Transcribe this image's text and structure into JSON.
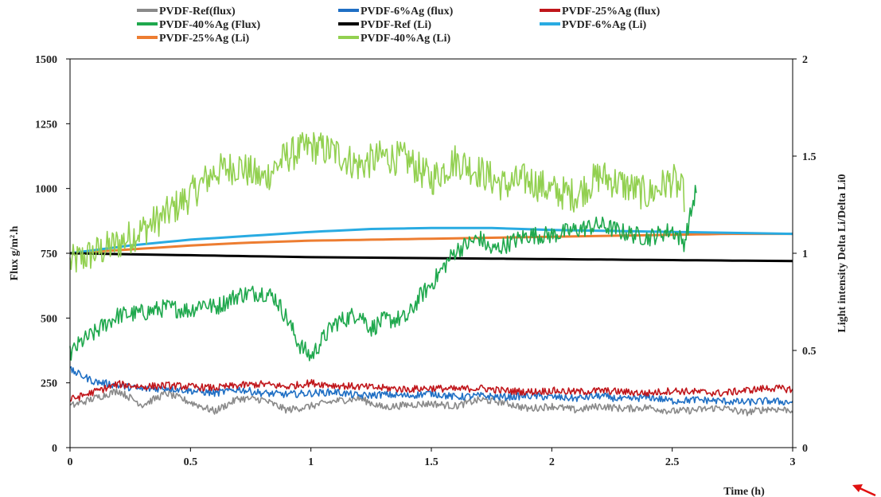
{
  "chart_data": {
    "type": "line",
    "title": "",
    "xlabel": "Time (h)",
    "ylabel": "Flux g/m².h",
    "y2label": "Light intensity Delta Li/Delta Li0",
    "xlim": [
      0,
      3
    ],
    "ylim": [
      0,
      1500
    ],
    "y2lim": [
      0,
      2
    ],
    "grid": false,
    "legend_position": "top",
    "x_ticks": [
      "0",
      "0.5",
      "1",
      "1.5",
      "2",
      "2.5",
      "3"
    ],
    "y_ticks": [
      "0",
      "250",
      "500",
      "750",
      "1000",
      "1250",
      "1500"
    ],
    "y2_ticks": [
      "0",
      "0.5",
      "1",
      "1.5",
      "2"
    ],
    "series": [
      {
        "name": "PVDF-Ref(flux)",
        "axis": "left",
        "color": "#8a8a8a",
        "noise": 14,
        "x": [
          0,
          0.1,
          0.2,
          0.3,
          0.4,
          0.5,
          0.6,
          0.7,
          0.8,
          0.9,
          1.0,
          1.1,
          1.2,
          1.3,
          1.4,
          1.5,
          1.6,
          1.7,
          1.8,
          1.9,
          2.0,
          2.1,
          2.2,
          2.3,
          2.4,
          2.5,
          2.6,
          2.7,
          2.8,
          2.9,
          3.0
        ],
        "y": [
          160,
          190,
          220,
          165,
          210,
          175,
          140,
          190,
          185,
          145,
          160,
          180,
          190,
          155,
          165,
          170,
          160,
          185,
          175,
          150,
          160,
          145,
          160,
          150,
          155,
          140,
          145,
          155,
          135,
          150,
          145
        ]
      },
      {
        "name": "PVDF-6%Ag (flux)",
        "axis": "left",
        "color": "#1f6fc4",
        "noise": 14,
        "x": [
          0,
          0.1,
          0.2,
          0.3,
          0.4,
          0.5,
          0.6,
          0.7,
          0.8,
          0.9,
          1.0,
          1.1,
          1.2,
          1.3,
          1.4,
          1.5,
          1.6,
          1.7,
          1.8,
          1.9,
          2.0,
          2.1,
          2.2,
          2.3,
          2.4,
          2.5,
          2.6,
          2.7,
          2.8,
          2.9,
          3.0
        ],
        "y": [
          300,
          255,
          240,
          225,
          230,
          220,
          210,
          225,
          210,
          205,
          210,
          215,
          200,
          205,
          200,
          210,
          195,
          200,
          195,
          200,
          195,
          190,
          200,
          185,
          195,
          180,
          185,
          180,
          175,
          180,
          175
        ]
      },
      {
        "name": "PVDF-25%Ag (flux)",
        "axis": "left",
        "color": "#c0161b",
        "noise": 14,
        "x": [
          0,
          0.1,
          0.2,
          0.3,
          0.4,
          0.5,
          0.6,
          0.7,
          0.8,
          0.9,
          1.0,
          1.1,
          1.2,
          1.3,
          1.4,
          1.5,
          1.6,
          1.7,
          1.8,
          1.9,
          2.0,
          2.1,
          2.2,
          2.3,
          2.4,
          2.5,
          2.6,
          2.7,
          2.8,
          2.9,
          3.0
        ],
        "y": [
          185,
          215,
          245,
          235,
          240,
          235,
          230,
          240,
          245,
          235,
          250,
          240,
          235,
          230,
          225,
          230,
          225,
          230,
          220,
          215,
          220,
          215,
          220,
          215,
          210,
          220,
          215,
          210,
          220,
          230,
          225
        ]
      },
      {
        "name": "PVDF-40%Ag (Flux)",
        "axis": "left",
        "color": "#1fa84d",
        "noise": 35,
        "x": [
          0,
          0.05,
          0.1,
          0.15,
          0.2,
          0.3,
          0.4,
          0.5,
          0.55,
          0.6,
          0.7,
          0.8,
          0.85,
          0.9,
          0.95,
          1.0,
          1.05,
          1.1,
          1.2,
          1.25,
          1.3,
          1.4,
          1.45,
          1.5,
          1.6,
          1.7,
          1.75,
          1.8,
          1.9,
          2.0,
          2.1,
          2.2,
          2.3,
          2.4,
          2.5,
          2.55,
          2.6
        ],
        "y": [
          360,
          410,
          440,
          480,
          510,
          520,
          540,
          530,
          560,
          540,
          590,
          600,
          580,
          500,
          400,
          350,
          420,
          480,
          520,
          460,
          490,
          500,
          580,
          630,
          760,
          810,
          760,
          780,
          820,
          820,
          840,
          860,
          830,
          810,
          840,
          790,
          1000
        ]
      },
      {
        "name": "PVDF-Ref (Li)",
        "axis": "right",
        "color": "#000000",
        "noise": 0,
        "x": [
          0,
          0.5,
          1.0,
          1.5,
          2.0,
          2.5,
          3.0
        ],
        "y": [
          1.0,
          0.99,
          0.98,
          0.975,
          0.97,
          0.965,
          0.96
        ]
      },
      {
        "name": "PVDF-6%Ag (Li)",
        "axis": "right",
        "color": "#29abe2",
        "noise": 0,
        "x": [
          0,
          0.25,
          0.5,
          0.75,
          1.0,
          1.25,
          1.5,
          1.75,
          2.0,
          2.25,
          2.5,
          2.75,
          3.0
        ],
        "y": [
          1.0,
          1.04,
          1.07,
          1.09,
          1.11,
          1.125,
          1.13,
          1.13,
          1.12,
          1.115,
          1.11,
          1.105,
          1.1
        ]
      },
      {
        "name": "PVDF-25%Ag (Li)",
        "axis": "right",
        "color": "#ed7d31",
        "noise": 0,
        "x": [
          0,
          0.25,
          0.5,
          0.75,
          1.0,
          1.25,
          1.5,
          1.75,
          2.0,
          2.25,
          2.5,
          2.75,
          3.0
        ],
        "y": [
          1.0,
          1.02,
          1.04,
          1.055,
          1.065,
          1.07,
          1.075,
          1.08,
          1.085,
          1.09,
          1.095,
          1.1,
          1.1
        ]
      },
      {
        "name": "PVDF-40%Ag (Li)",
        "axis": "right",
        "color": "#92d050",
        "noise": 0.09,
        "x": [
          0,
          0.1,
          0.2,
          0.3,
          0.4,
          0.5,
          0.6,
          0.7,
          0.8,
          0.9,
          1.0,
          1.1,
          1.2,
          1.3,
          1.4,
          1.5,
          1.6,
          1.7,
          1.8,
          1.9,
          2.0,
          2.1,
          2.2,
          2.3,
          2.4,
          2.5,
          2.55
        ],
        "y": [
          0.95,
          1.0,
          1.05,
          1.12,
          1.2,
          1.3,
          1.42,
          1.45,
          1.38,
          1.5,
          1.55,
          1.52,
          1.45,
          1.5,
          1.48,
          1.38,
          1.48,
          1.42,
          1.35,
          1.38,
          1.32,
          1.3,
          1.4,
          1.35,
          1.3,
          1.38,
          1.3
        ]
      }
    ]
  }
}
